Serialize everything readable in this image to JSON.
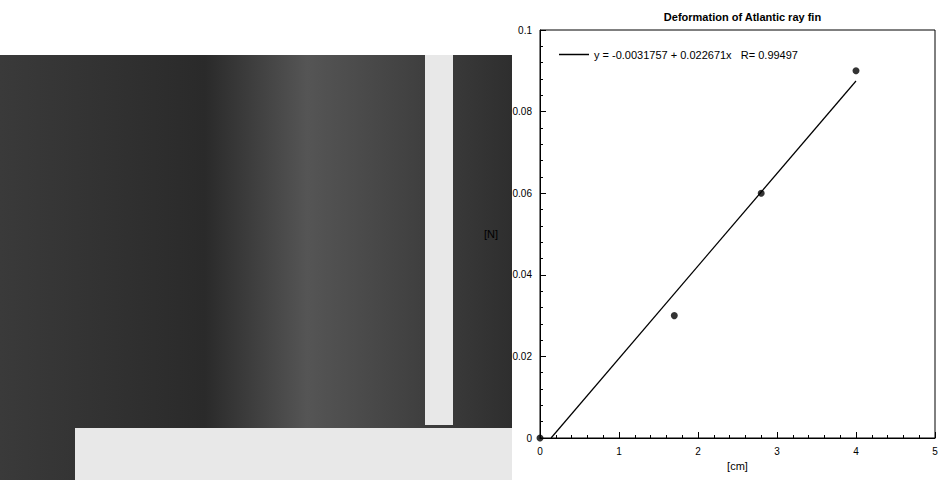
{
  "chart_data": {
    "type": "scatter",
    "title": "Deformation of Atlantic ray fin",
    "xlabel": "[cm]",
    "ylabel": "[N]",
    "series": [
      {
        "type": "scatter",
        "color": "#000000",
        "marker": "circle",
        "x": [
          0,
          1.7,
          2.8,
          4
        ],
        "values": [
          0,
          0.03,
          0.06,
          0.09
        ]
      },
      {
        "type": "line",
        "name": "y = -0.0031757 + 0.022671x   R= 0.99497",
        "color": "#000000",
        "line_style": "solid",
        "x": [
          0.14,
          4
        ],
        "values": [
          0,
          0.0875
        ]
      }
    ],
    "xlim": [
      0,
      5
    ],
    "xticks": [
      0,
      1,
      2,
      3,
      4,
      5
    ],
    "ylim": [
      0,
      0.1
    ],
    "yticks": [
      0,
      0.02,
      0.04,
      0.06,
      0.08,
      0.1
    ],
    "grid": false,
    "legend": "upper left"
  }
}
